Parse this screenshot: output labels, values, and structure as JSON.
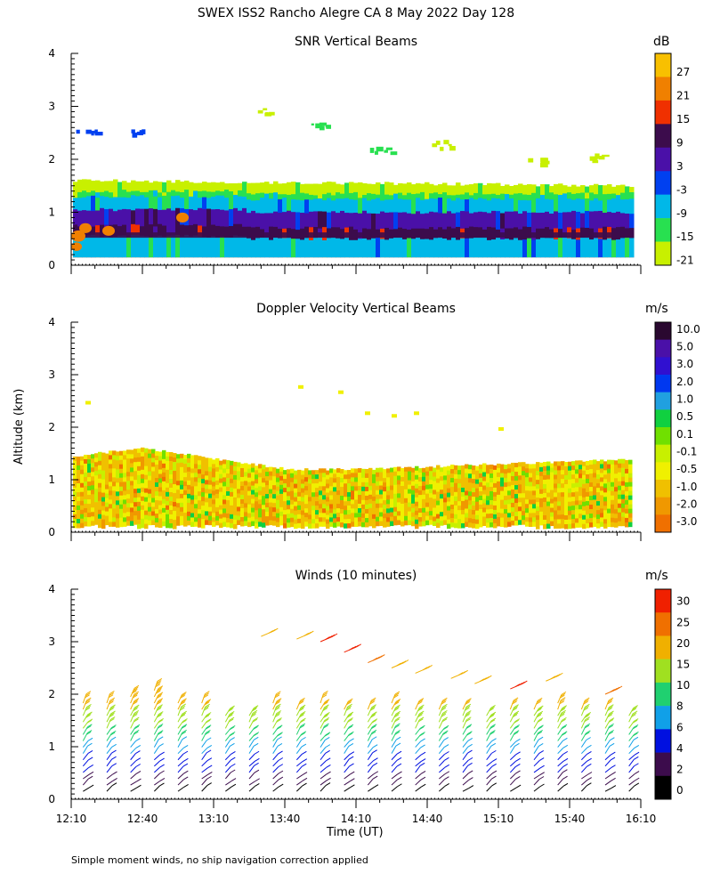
{
  "title": "SWEX ISS2 Rancho Alegre CA   8 May 2022 Day 128",
  "ylabel": "Altitude (km)",
  "xlabel": "Time (UT)",
  "footnote": "Simple moment winds, no ship navigation correction applied",
  "colors": {
    "snr": [
      "#c8f000",
      "#28e050",
      "#00b8e8",
      "#0040f0",
      "#4a10a8",
      "#3c0c4c",
      "#f03000",
      "#f08000",
      "#f8c000"
    ],
    "doppler": [
      "#f00020",
      "#f03a00",
      "#f07000",
      "#f09800",
      "#f0c000",
      "#f0f000",
      "#c8f000",
      "#70e000",
      "#10d040",
      "#20a0e0",
      "#0038f0",
      "#3010d0",
      "#4a10a8",
      "#2a0830"
    ],
    "winds": [
      "#000000",
      "#3c0c4c",
      "#0010e0",
      "#10a0e8",
      "#20d070",
      "#a0e020",
      "#f0b000",
      "#f07000",
      "#f02000"
    ]
  },
  "chart_data": [
    {
      "type": "heatmap",
      "title": "SNR Vertical Beams",
      "xlabel": "",
      "ylabel": "Altitude (km)",
      "xlim": [
        "12:10",
        "16:10"
      ],
      "ylim": [
        0,
        4
      ],
      "x_ticks": [
        "12:10",
        "12:40",
        "13:10",
        "13:40",
        "14:10",
        "14:40",
        "15:10",
        "15:40",
        "16:10"
      ],
      "y_ticks": [
        0,
        1,
        2,
        3,
        4
      ],
      "colorbar_unit": "dB",
      "colorbar_labels": [
        "27",
        "21",
        "15",
        "9",
        "3",
        "-3",
        "-9",
        "-15",
        "-21"
      ],
      "bands": [
        {
          "top_km": 1.5,
          "level_db": -21
        },
        {
          "top_km": 1.4,
          "level_db": -15
        },
        {
          "top_km": 1.3,
          "level_db": -9
        },
        {
          "top_km": 1.05,
          "level_db": 3
        },
        {
          "top_km": 0.75,
          "level_db": 6
        },
        {
          "top_km": 0.55,
          "level_db": -9
        }
      ],
      "cloud_patches": [
        {
          "time": "12:16",
          "alt_km": 2.5,
          "level_db": -3
        },
        {
          "time": "12:38",
          "alt_km": 2.55,
          "level_db": -3
        },
        {
          "time": "13:30",
          "alt_km": 2.9,
          "level_db": -21
        },
        {
          "time": "13:55",
          "alt_km": 2.7,
          "level_db": -15
        },
        {
          "time": "14:20",
          "alt_km": 2.2,
          "level_db": -15
        },
        {
          "time": "14:45",
          "alt_km": 2.3,
          "level_db": -21
        },
        {
          "time": "15:25",
          "alt_km": 2.0,
          "level_db": -21
        },
        {
          "time": "15:50",
          "alt_km": 2.05,
          "level_db": -21
        }
      ]
    },
    {
      "type": "heatmap",
      "title": "Doppler Velocity Vertical Beams",
      "xlabel": "",
      "ylabel": "Altitude (km)",
      "xlim": [
        "12:10",
        "16:10"
      ],
      "ylim": [
        0,
        4
      ],
      "x_ticks": [
        "12:10",
        "12:40",
        "13:10",
        "13:40",
        "14:10",
        "14:40",
        "15:10",
        "15:40",
        "16:10"
      ],
      "y_ticks": [
        0,
        1,
        2,
        3,
        4
      ],
      "colorbar_unit": "m/s",
      "colorbar_labels": [
        "10.0",
        "5.0",
        "3.0",
        "2.0",
        "1.0",
        "0.5",
        "0.1",
        "-0.1",
        "-0.5",
        "-1.0",
        "-2.0",
        "-3.0"
      ],
      "layer_top_km": [
        1.45,
        1.6,
        1.4,
        1.2,
        1.2,
        1.25,
        1.3,
        1.35,
        1.4
      ],
      "dominant_range_ms": [
        -1.0,
        0.1
      ],
      "notes": [
        "mostly -0.5 to 0.1 m/s below the boundary layer top"
      ]
    },
    {
      "type": "scatter",
      "title": "Winds (10 minutes)",
      "xlabel": "Time (UT)",
      "ylabel": "Altitude (km)",
      "xlim": [
        "12:10",
        "16:10"
      ],
      "ylim": [
        0,
        4
      ],
      "x_ticks": [
        "12:10",
        "12:40",
        "13:10",
        "13:40",
        "14:10",
        "14:40",
        "15:10",
        "15:40",
        "16:10"
      ],
      "y_ticks": [
        0,
        1,
        2,
        3,
        4
      ],
      "colorbar_unit": "m/s",
      "colorbar_labels": [
        "30",
        "25",
        "20",
        "15",
        "10",
        "8",
        "6",
        "4",
        "2",
        "0"
      ],
      "profile_times": [
        "12:15",
        "12:25",
        "12:35",
        "12:45",
        "12:55",
        "13:05",
        "13:15",
        "13:25",
        "13:35",
        "13:45",
        "13:55",
        "14:05",
        "14:15",
        "14:25",
        "14:35",
        "14:45",
        "14:55",
        "15:05",
        "15:15",
        "15:25",
        "15:35",
        "15:45",
        "15:55",
        "16:05"
      ],
      "profile_top_km": [
        1.9,
        1.9,
        2.0,
        2.1,
        1.9,
        1.9,
        1.6,
        1.7,
        1.9,
        1.8,
        1.9,
        1.8,
        1.8,
        1.9,
        1.8,
        1.8,
        1.8,
        1.7,
        1.8,
        1.8,
        1.9,
        1.8,
        1.8,
        1.7
      ],
      "speed_profile_ms": [
        {
          "alt_km": 0.2,
          "speed": 2
        },
        {
          "alt_km": 0.5,
          "speed": 4
        },
        {
          "alt_km": 0.8,
          "speed": 6
        },
        {
          "alt_km": 1.1,
          "speed": 8
        },
        {
          "alt_km": 1.4,
          "speed": 12
        },
        {
          "alt_km": 1.7,
          "speed": 15
        },
        {
          "alt_km": 2.0,
          "speed": 18
        }
      ],
      "upper_barbs": [
        {
          "time": "13:30",
          "alt_km": 3.1,
          "speed": 15
        },
        {
          "time": "13:45",
          "alt_km": 3.05,
          "speed": 16
        },
        {
          "time": "13:55",
          "alt_km": 3.0,
          "speed": 28
        },
        {
          "time": "14:05",
          "alt_km": 2.8,
          "speed": 30
        },
        {
          "time": "14:15",
          "alt_km": 2.6,
          "speed": 22
        },
        {
          "time": "14:25",
          "alt_km": 2.5,
          "speed": 18
        },
        {
          "time": "14:35",
          "alt_km": 2.4,
          "speed": 16
        },
        {
          "time": "14:50",
          "alt_km": 2.3,
          "speed": 17
        },
        {
          "time": "15:00",
          "alt_km": 2.2,
          "speed": 18
        },
        {
          "time": "15:15",
          "alt_km": 2.1,
          "speed": 26
        },
        {
          "time": "15:30",
          "alt_km": 2.25,
          "speed": 19
        },
        {
          "time": "15:55",
          "alt_km": 2.0,
          "speed": 22
        }
      ]
    }
  ]
}
